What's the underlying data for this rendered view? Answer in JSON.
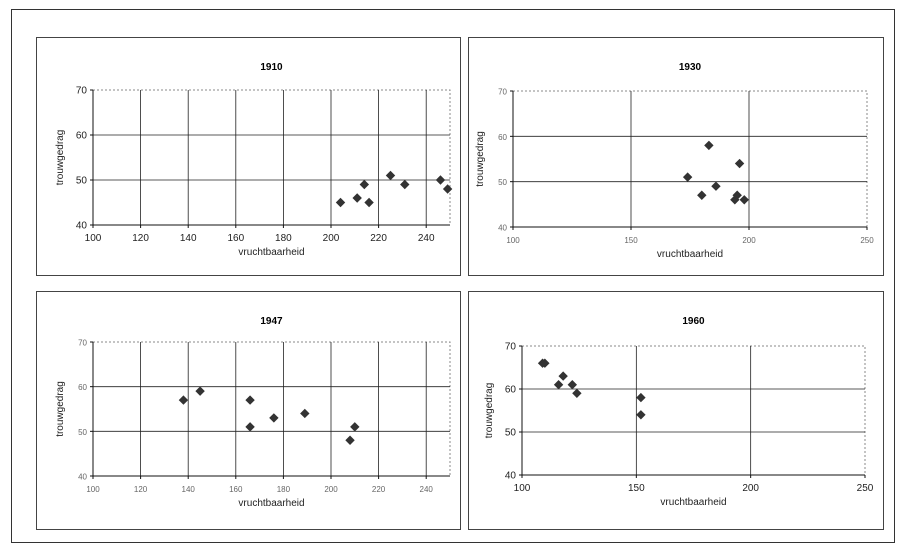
{
  "chart_data": [
    {
      "type": "scatter",
      "title": "1910",
      "xlabel": "vruchtbaarheid",
      "ylabel": "trouwgedrag",
      "xlim": [
        100,
        250
      ],
      "ylim": [
        40,
        70
      ],
      "xticks": [
        "100",
        "120",
        "140",
        "160",
        "180",
        "200",
        "220",
        "240"
      ],
      "xtick_values": [
        100,
        120,
        140,
        160,
        180,
        200,
        220,
        240
      ],
      "yticks": [
        "40",
        "50",
        "60",
        "70"
      ],
      "ytick_values": [
        40,
        50,
        60,
        70
      ],
      "grid": "major x and y",
      "marker_color": "#333333",
      "points": [
        {
          "x": 204,
          "y": 45
        },
        {
          "x": 211,
          "y": 46
        },
        {
          "x": 214,
          "y": 49
        },
        {
          "x": 216,
          "y": 45
        },
        {
          "x": 225,
          "y": 51
        },
        {
          "x": 231,
          "y": 49
        },
        {
          "x": 246,
          "y": 50
        },
        {
          "x": 249,
          "y": 48
        }
      ]
    },
    {
      "type": "scatter",
      "title": "1930",
      "xlabel": "vruchtbaarheid",
      "ylabel": "trouwgedrag",
      "xlim": [
        100,
        250
      ],
      "ylim": [
        40,
        70
      ],
      "xticks": [
        "100",
        "150",
        "200",
        "250"
      ],
      "xtick_values": [
        100,
        150,
        200,
        250
      ],
      "yticks": [
        "40",
        "50",
        "60",
        "70"
      ],
      "ytick_values": [
        40,
        50,
        60,
        70
      ],
      "grid": "major x and y",
      "marker_color": "#333333",
      "points": [
        {
          "x": 174,
          "y": 51
        },
        {
          "x": 180,
          "y": 47
        },
        {
          "x": 183,
          "y": 58
        },
        {
          "x": 186,
          "y": 49
        },
        {
          "x": 194,
          "y": 46
        },
        {
          "x": 195,
          "y": 47
        },
        {
          "x": 196,
          "y": 54
        },
        {
          "x": 198,
          "y": 46
        }
      ]
    },
    {
      "type": "scatter",
      "title": "1947",
      "xlabel": "vruchtbaarheid",
      "ylabel": "trouwgedrag",
      "xlim": [
        100,
        250
      ],
      "ylim": [
        40,
        70
      ],
      "xticks": [
        "100",
        "120",
        "140",
        "160",
        "180",
        "200",
        "220",
        "240"
      ],
      "xtick_values": [
        100,
        120,
        140,
        160,
        180,
        200,
        220,
        240
      ],
      "yticks": [
        "40",
        "50",
        "60",
        "70"
      ],
      "ytick_values": [
        40,
        50,
        60,
        70
      ],
      "grid": "major x and y",
      "marker_color": "#333333",
      "points": [
        {
          "x": 138,
          "y": 57
        },
        {
          "x": 145,
          "y": 59
        },
        {
          "x": 166,
          "y": 57
        },
        {
          "x": 166,
          "y": 51
        },
        {
          "x": 176,
          "y": 53
        },
        {
          "x": 189,
          "y": 54
        },
        {
          "x": 208,
          "y": 48
        },
        {
          "x": 210,
          "y": 51
        }
      ]
    },
    {
      "type": "scatter",
      "title": "1960",
      "xlabel": "vruchtbaarheid",
      "ylabel": "trouwgedrag",
      "xlim": [
        100,
        250
      ],
      "ylim": [
        40,
        70
      ],
      "xticks": [
        "100",
        "150",
        "200",
        "250"
      ],
      "xtick_values": [
        100,
        150,
        200,
        250
      ],
      "yticks": [
        "40",
        "50",
        "60",
        "70"
      ],
      "ytick_values": [
        40,
        50,
        60,
        70
      ],
      "grid": "major x and y",
      "marker_color": "#333333",
      "points": [
        {
          "x": 109,
          "y": 66
        },
        {
          "x": 110,
          "y": 66
        },
        {
          "x": 116,
          "y": 61
        },
        {
          "x": 118,
          "y": 63
        },
        {
          "x": 122,
          "y": 61
        },
        {
          "x": 124,
          "y": 59
        },
        {
          "x": 152,
          "y": 58
        },
        {
          "x": 152,
          "y": 54
        }
      ]
    }
  ]
}
